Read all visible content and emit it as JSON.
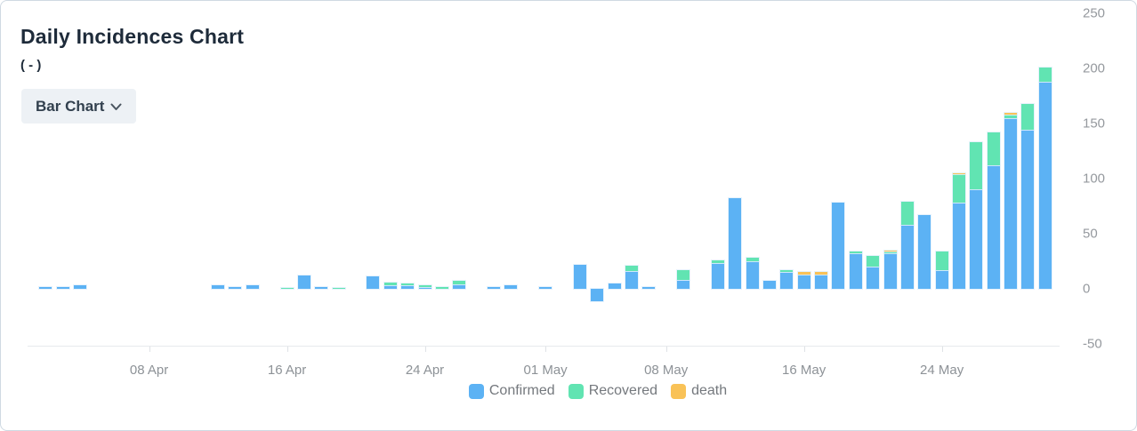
{
  "header": {
    "title": "Daily Incidences Chart",
    "subtitle": "( - )",
    "chart_type_button": {
      "label": "Bar Chart",
      "icon": "chevron-down-icon"
    }
  },
  "chart_data": {
    "type": "bar",
    "stacked": true,
    "title": "Daily Incidences Chart",
    "xlabel": "",
    "ylabel": "",
    "ylim": [
      -50,
      250
    ],
    "grid": false,
    "legend_position": "bottom",
    "y_ticks": [
      250,
      200,
      150,
      100,
      50,
      0,
      -50
    ],
    "x_ticks": [
      {
        "label": "08 Apr",
        "day_index": 7
      },
      {
        "label": "16 Apr",
        "day_index": 15
      },
      {
        "label": "24 Apr",
        "day_index": 23
      },
      {
        "label": "01 May",
        "day_index": 30
      },
      {
        "label": "08 May",
        "day_index": 37
      },
      {
        "label": "16 May",
        "day_index": 45
      },
      {
        "label": "24 May",
        "day_index": 53
      }
    ],
    "series": [
      {
        "name": "Confirmed",
        "color": "#5cb2f4",
        "key": "confirmed"
      },
      {
        "name": "Recovered",
        "color": "#61e4b2",
        "key": "recovered"
      },
      {
        "name": "death",
        "color": "#f9c257",
        "key": "death"
      }
    ],
    "points": [
      {
        "date": "02 Apr",
        "day_index": 1,
        "confirmed": 2,
        "recovered": 0,
        "death": 0
      },
      {
        "date": "03 Apr",
        "day_index": 2,
        "confirmed": 2,
        "recovered": 0,
        "death": 0
      },
      {
        "date": "04 Apr",
        "day_index": 3,
        "confirmed": 3,
        "recovered": 0,
        "death": 0
      },
      {
        "date": "12 Apr",
        "day_index": 11,
        "confirmed": 3,
        "recovered": 0,
        "death": 0
      },
      {
        "date": "13 Apr",
        "day_index": 12,
        "confirmed": 2,
        "recovered": 0,
        "death": 0
      },
      {
        "date": "14 Apr",
        "day_index": 13,
        "confirmed": 3,
        "recovered": 0,
        "death": 0
      },
      {
        "date": "16 Apr",
        "day_index": 15,
        "confirmed": 0,
        "recovered": 1,
        "death": 0
      },
      {
        "date": "17 Apr",
        "day_index": 16,
        "confirmed": 12,
        "recovered": 0,
        "death": 0
      },
      {
        "date": "18 Apr",
        "day_index": 17,
        "confirmed": 2,
        "recovered": 0,
        "death": 0
      },
      {
        "date": "19 Apr",
        "day_index": 18,
        "confirmed": 0,
        "recovered": 1,
        "death": 0
      },
      {
        "date": "21 Apr",
        "day_index": 20,
        "confirmed": 11,
        "recovered": 0,
        "death": 0
      },
      {
        "date": "22 Apr",
        "day_index": 21,
        "confirmed": 3,
        "recovered": 3,
        "death": 0
      },
      {
        "date": "23 Apr",
        "day_index": 22,
        "confirmed": 3,
        "recovered": 2,
        "death": 0
      },
      {
        "date": "24 Apr",
        "day_index": 23,
        "confirmed": 2,
        "recovered": 1,
        "death": 0
      },
      {
        "date": "25 Apr",
        "day_index": 24,
        "confirmed": 0,
        "recovered": 2,
        "death": 0
      },
      {
        "date": "26 Apr",
        "day_index": 25,
        "confirmed": 4,
        "recovered": 3,
        "death": 0
      },
      {
        "date": "28 Apr",
        "day_index": 27,
        "confirmed": 2,
        "recovered": 0,
        "death": 0
      },
      {
        "date": "29 Apr",
        "day_index": 28,
        "confirmed": 3,
        "recovered": 0,
        "death": 0
      },
      {
        "date": "01 May",
        "day_index": 30,
        "confirmed": 2,
        "recovered": 0,
        "death": 0
      },
      {
        "date": "03 May",
        "day_index": 32,
        "confirmed": 22,
        "recovered": 0,
        "death": 0
      },
      {
        "date": "04 May",
        "day_index": 33,
        "confirmed": -11,
        "recovered": 0,
        "death": 0
      },
      {
        "date": "05 May",
        "day_index": 34,
        "confirmed": 5,
        "recovered": 0,
        "death": 0
      },
      {
        "date": "06 May",
        "day_index": 35,
        "confirmed": 16,
        "recovered": 5,
        "death": 0
      },
      {
        "date": "07 May",
        "day_index": 36,
        "confirmed": 2,
        "recovered": 0,
        "death": 0
      },
      {
        "date": "09 May",
        "day_index": 38,
        "confirmed": 8,
        "recovered": 9,
        "death": 0
      },
      {
        "date": "11 May",
        "day_index": 40,
        "confirmed": 23,
        "recovered": 3,
        "death": 0
      },
      {
        "date": "12 May",
        "day_index": 41,
        "confirmed": 82,
        "recovered": 0,
        "death": 0
      },
      {
        "date": "13 May",
        "day_index": 42,
        "confirmed": 25,
        "recovered": 3,
        "death": 0
      },
      {
        "date": "14 May",
        "day_index": 43,
        "confirmed": 7,
        "recovered": 0,
        "death": 0
      },
      {
        "date": "15 May",
        "day_index": 44,
        "confirmed": 15,
        "recovered": 2,
        "death": 0
      },
      {
        "date": "16 May",
        "day_index": 45,
        "confirmed": 13,
        "recovered": 0,
        "death": 2
      },
      {
        "date": "17 May",
        "day_index": 46,
        "confirmed": 13,
        "recovered": 0,
        "death": 2
      },
      {
        "date": "18 May",
        "day_index": 47,
        "confirmed": 78,
        "recovered": 0,
        "death": 0
      },
      {
        "date": "19 May",
        "day_index": 48,
        "confirmed": 32,
        "recovered": 2,
        "death": 0
      },
      {
        "date": "20 May",
        "day_index": 49,
        "confirmed": 20,
        "recovered": 10,
        "death": 0
      },
      {
        "date": "21 May",
        "day_index": 50,
        "confirmed": 32,
        "recovered": 2,
        "death": 1
      },
      {
        "date": "22 May",
        "day_index": 51,
        "confirmed": 58,
        "recovered": 21,
        "death": 0
      },
      {
        "date": "23 May",
        "day_index": 52,
        "confirmed": 67,
        "recovered": 0,
        "death": 0
      },
      {
        "date": "24 May",
        "day_index": 53,
        "confirmed": 17,
        "recovered": 17,
        "death": 0
      },
      {
        "date": "25 May",
        "day_index": 54,
        "confirmed": 78,
        "recovered": 26,
        "death": 1
      },
      {
        "date": "26 May",
        "day_index": 55,
        "confirmed": 90,
        "recovered": 43,
        "death": 0
      },
      {
        "date": "27 May",
        "day_index": 56,
        "confirmed": 112,
        "recovered": 30,
        "death": 0
      },
      {
        "date": "28 May",
        "day_index": 57,
        "confirmed": 155,
        "recovered": 3,
        "death": 2
      },
      {
        "date": "29 May",
        "day_index": 58,
        "confirmed": 144,
        "recovered": 24,
        "death": 0
      },
      {
        "date": "30 May",
        "day_index": 59,
        "confirmed": 188,
        "recovered": 13,
        "death": 0
      }
    ]
  }
}
